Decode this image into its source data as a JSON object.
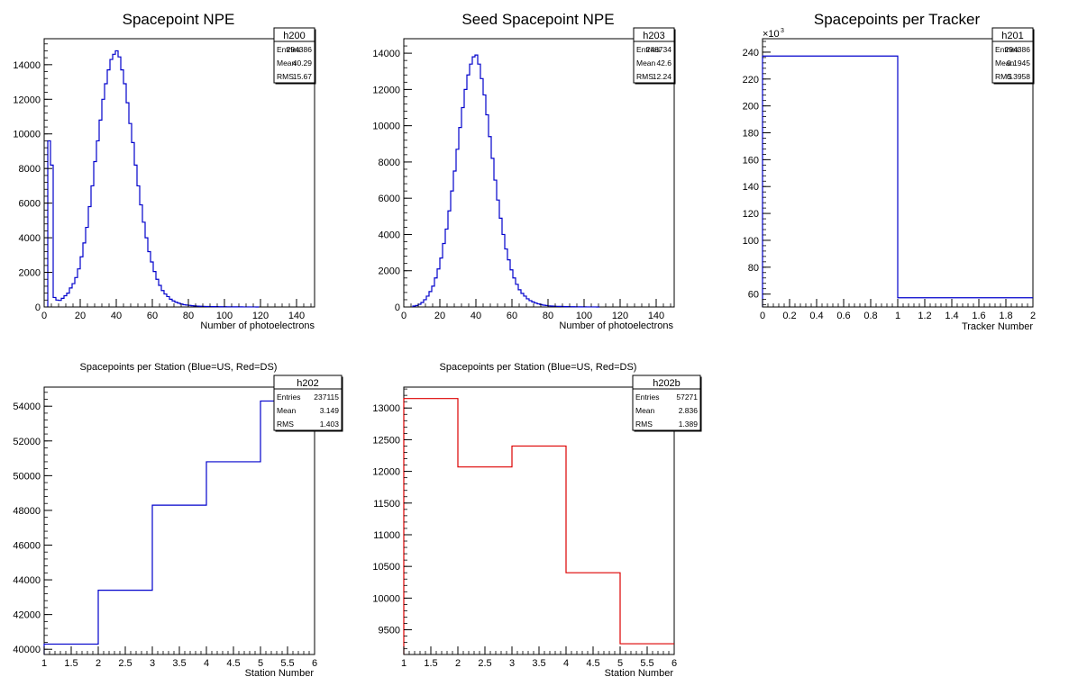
{
  "chart_data": [
    {
      "id": "p1",
      "type": "histogram",
      "title": "Spacepoint NPE",
      "xlabel": "Number of photoelectrons",
      "ylabel": "",
      "xlim": [
        0,
        150
      ],
      "ylim": [
        0,
        15500
      ],
      "xticks": [
        0,
        20,
        40,
        60,
        80,
        100,
        120,
        140
      ],
      "yticks": [
        0,
        2000,
        4000,
        6000,
        8000,
        10000,
        12000,
        14000
      ],
      "line_color": "#0000cc",
      "bin_edges_start": 2,
      "bin_width": 1.5,
      "values": [
        9600,
        8200,
        550,
        400,
        380,
        500,
        650,
        800,
        1100,
        1350,
        1700,
        2200,
        2900,
        3700,
        4600,
        5800,
        7000,
        8400,
        9600,
        10800,
        12000,
        12900,
        13700,
        14300,
        14600,
        14800,
        14450,
        13700,
        12900,
        11800,
        10600,
        9500,
        8200,
        7000,
        5900,
        4900,
        4000,
        3200,
        2600,
        2050,
        1600,
        1250,
        950,
        750,
        600,
        450,
        350,
        280,
        220,
        170,
        130,
        110,
        90,
        70,
        60,
        50,
        40,
        35,
        30,
        25,
        22,
        20,
        18,
        15,
        14,
        12,
        10,
        9,
        8,
        6,
        5,
        5,
        4,
        3,
        3,
        2,
        2,
        1
      ],
      "stats": {
        "name": "h200",
        "rows": [
          [
            "Entries",
            "294386"
          ],
          [
            "Mean",
            "40.29"
          ],
          [
            "RMS",
            "15.67"
          ]
        ]
      }
    },
    {
      "id": "p2",
      "type": "histogram",
      "title": "Seed Spacepoint NPE",
      "xlabel": "Number of photoelectrons",
      "ylabel": "",
      "xlim": [
        0,
        150
      ],
      "ylim": [
        0,
        14800
      ],
      "xticks": [
        0,
        20,
        40,
        60,
        80,
        100,
        120,
        140
      ],
      "yticks": [
        0,
        2000,
        4000,
        6000,
        8000,
        10000,
        12000,
        14000
      ],
      "line_color": "#0000cc",
      "bin_edges_start": 5,
      "bin_width": 1.5,
      "values": [
        50,
        80,
        150,
        250,
        400,
        600,
        850,
        1150,
        1600,
        2100,
        2700,
        3500,
        4300,
        5300,
        6400,
        7500,
        8700,
        9900,
        11000,
        12000,
        12800,
        13400,
        13800,
        13900,
        13400,
        12600,
        11700,
        10600,
        9400,
        8200,
        7000,
        5900,
        4900,
        4000,
        3200,
        2600,
        2050,
        1600,
        1250,
        950,
        750,
        600,
        450,
        350,
        280,
        220,
        170,
        130,
        100,
        80,
        60,
        50,
        40,
        35,
        30,
        25,
        20,
        18,
        15,
        12,
        10,
        8,
        6,
        5,
        4,
        3,
        2,
        2,
        1
      ],
      "stats": {
        "name": "h203",
        "rows": [
          [
            "Entries",
            "248734"
          ],
          [
            "Mean",
            "42.6"
          ],
          [
            "RMS",
            "12.24"
          ]
        ]
      }
    },
    {
      "id": "p3",
      "type": "histogram",
      "title": "Spacepoints per Tracker",
      "xlabel": "Tracker Number",
      "ylabel": "",
      "exponent_label": "×10",
      "exponent_power": "3",
      "xlim": [
        0,
        2
      ],
      "ylim": [
        50.4,
        250
      ],
      "xticks": [
        0,
        0.2,
        0.4,
        0.6,
        0.8,
        1,
        1.2,
        1.4,
        1.6,
        1.8,
        2
      ],
      "xtick_labels": [
        "0",
        "0.2",
        "0.4",
        "0.6",
        "0.8",
        "1",
        "1.2",
        "1.4",
        "1.6",
        "1.8",
        "2"
      ],
      "yticks": [
        60,
        80,
        100,
        120,
        140,
        160,
        180,
        200,
        220,
        240
      ],
      "line_color": "#0000cc",
      "bin_edges_start": 0,
      "bin_width": 1,
      "values": [
        237.115,
        57.271
      ],
      "stats": {
        "name": "h201",
        "rows": [
          [
            "Entries",
            "294386"
          ],
          [
            "Mean",
            "0.1945"
          ],
          [
            "RMS",
            "0.3958"
          ]
        ]
      }
    },
    {
      "id": "p4",
      "type": "histogram",
      "title": "Spacepoints per Station (Blue=US, Red=DS)",
      "xlabel": "Station Number",
      "ylabel": "",
      "xlim": [
        1,
        6
      ],
      "ylim": [
        39700,
        55100
      ],
      "xticks": [
        1,
        1.5,
        2,
        2.5,
        3,
        3.5,
        4,
        4.5,
        5,
        5.5,
        6
      ],
      "xtick_labels": [
        "1",
        "1.5",
        "2",
        "2.5",
        "3",
        "3.5",
        "4",
        "4.5",
        "5",
        "5.5",
        "6"
      ],
      "yticks": [
        40000,
        42000,
        44000,
        46000,
        48000,
        50000,
        52000,
        54000
      ],
      "line_color": "#0000cc",
      "bin_edges_start": 1,
      "bin_width": 1,
      "values": [
        40300,
        43400,
        48300,
        50800,
        54300
      ],
      "stats": {
        "name": "h202",
        "rows": [
          [
            "Entries",
            "237115"
          ],
          [
            "Mean",
            "3.149"
          ],
          [
            "RMS",
            "1.403"
          ]
        ]
      }
    },
    {
      "id": "p5",
      "type": "histogram",
      "title": "Spacepoints per Station (Blue=US, Red=DS)",
      "xlabel": "Station Number",
      "ylabel": "",
      "xlim": [
        1,
        6
      ],
      "ylim": [
        9110,
        13330
      ],
      "xticks": [
        1,
        1.5,
        2,
        2.5,
        3,
        3.5,
        4,
        4.5,
        5,
        5.5,
        6
      ],
      "xtick_labels": [
        "1",
        "1.5",
        "2",
        "2.5",
        "3",
        "3.5",
        "4",
        "4.5",
        "5",
        "5.5",
        "6"
      ],
      "yticks": [
        9500,
        10000,
        10500,
        11000,
        11500,
        12000,
        12500,
        13000
      ],
      "line_color": "#dd0000",
      "bin_edges_start": 1,
      "bin_width": 1,
      "values": [
        13150,
        12070,
        12400,
        10400,
        9280
      ],
      "stats": {
        "name": "h202b",
        "rows": [
          [
            "Entries",
            "57271"
          ],
          [
            "Mean",
            "2.836"
          ],
          [
            "RMS",
            "1.389"
          ]
        ]
      }
    }
  ]
}
